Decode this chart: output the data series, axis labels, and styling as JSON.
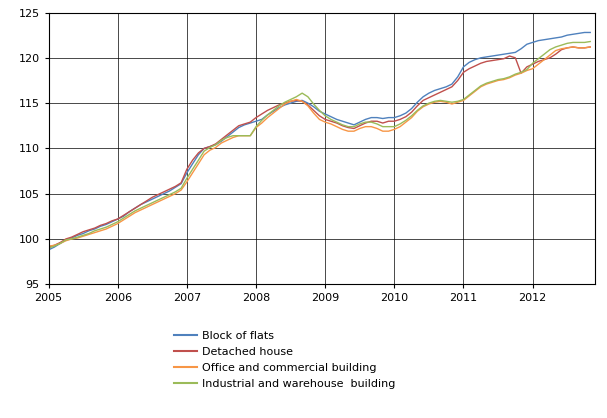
{
  "title": "",
  "xlim": [
    2005.0,
    2012.9
  ],
  "ylim": [
    95,
    125
  ],
  "yticks": [
    95,
    100,
    105,
    110,
    115,
    120,
    125
  ],
  "xtick_years": [
    2005,
    2006,
    2007,
    2008,
    2009,
    2010,
    2011,
    2012
  ],
  "grid_color": "#000000",
  "background_color": "#ffffff",
  "legend": [
    {
      "label": "Block of flats",
      "color": "#4f81bd"
    },
    {
      "label": "Detached house",
      "color": "#c0504d"
    },
    {
      "label": "Office and commercial building",
      "color": "#f79646"
    },
    {
      "label": "Industrial and warehouse  building",
      "color": "#9bbb59"
    }
  ],
  "series": {
    "block_of_flats": {
      "color": "#4f81bd",
      "x": [
        2005.0,
        2005.083,
        2005.167,
        2005.25,
        2005.333,
        2005.417,
        2005.5,
        2005.583,
        2005.667,
        2005.75,
        2005.833,
        2005.917,
        2006.0,
        2006.083,
        2006.167,
        2006.25,
        2006.333,
        2006.417,
        2006.5,
        2006.583,
        2006.667,
        2006.75,
        2006.833,
        2006.917,
        2007.0,
        2007.083,
        2007.167,
        2007.25,
        2007.333,
        2007.417,
        2007.5,
        2007.583,
        2007.667,
        2007.75,
        2007.833,
        2007.917,
        2008.0,
        2008.083,
        2008.167,
        2008.25,
        2008.333,
        2008.417,
        2008.5,
        2008.583,
        2008.667,
        2008.75,
        2008.833,
        2008.917,
        2009.0,
        2009.083,
        2009.167,
        2009.25,
        2009.333,
        2009.417,
        2009.5,
        2009.583,
        2009.667,
        2009.75,
        2009.833,
        2009.917,
        2010.0,
        2010.083,
        2010.167,
        2010.25,
        2010.333,
        2010.417,
        2010.5,
        2010.583,
        2010.667,
        2010.75,
        2010.833,
        2010.917,
        2011.0,
        2011.083,
        2011.167,
        2011.25,
        2011.333,
        2011.417,
        2011.5,
        2011.583,
        2011.667,
        2011.75,
        2011.833,
        2011.917,
        2012.0,
        2012.083,
        2012.167,
        2012.25,
        2012.333,
        2012.417,
        2012.5,
        2012.583,
        2012.667,
        2012.75,
        2012.833
      ],
      "y": [
        98.8,
        99.1,
        99.5,
        99.9,
        100.1,
        100.4,
        100.6,
        100.9,
        101.1,
        101.4,
        101.6,
        101.9,
        102.2,
        102.5,
        103.0,
        103.4,
        103.8,
        104.1,
        104.4,
        104.7,
        105.0,
        105.3,
        105.7,
        106.1,
        107.3,
        108.3,
        109.3,
        110.0,
        110.2,
        110.4,
        110.8,
        111.3,
        111.8,
        112.3,
        112.6,
        112.8,
        113.0,
        113.2,
        113.7,
        114.1,
        114.5,
        114.8,
        115.0,
        115.2,
        115.3,
        115.0,
        114.6,
        114.1,
        113.8,
        113.5,
        113.2,
        113.0,
        112.8,
        112.6,
        112.9,
        113.2,
        113.4,
        113.4,
        113.3,
        113.4,
        113.4,
        113.6,
        113.9,
        114.4,
        115.1,
        115.7,
        116.1,
        116.4,
        116.6,
        116.8,
        117.1,
        117.9,
        119.0,
        119.5,
        119.8,
        120.0,
        120.1,
        120.2,
        120.3,
        120.4,
        120.5,
        120.6,
        121.0,
        121.5,
        121.7,
        121.9,
        122.0,
        122.1,
        122.2,
        122.3,
        122.5,
        122.6,
        122.7,
        122.8,
        122.8
      ]
    },
    "detached_house": {
      "color": "#c0504d",
      "x": [
        2005.0,
        2005.083,
        2005.167,
        2005.25,
        2005.333,
        2005.417,
        2005.5,
        2005.583,
        2005.667,
        2005.75,
        2005.833,
        2005.917,
        2006.0,
        2006.083,
        2006.167,
        2006.25,
        2006.333,
        2006.417,
        2006.5,
        2006.583,
        2006.667,
        2006.75,
        2006.833,
        2006.917,
        2007.0,
        2007.083,
        2007.167,
        2007.25,
        2007.333,
        2007.417,
        2007.5,
        2007.583,
        2007.667,
        2007.75,
        2007.833,
        2007.917,
        2008.0,
        2008.083,
        2008.167,
        2008.25,
        2008.333,
        2008.417,
        2008.5,
        2008.583,
        2008.667,
        2008.75,
        2008.833,
        2008.917,
        2009.0,
        2009.083,
        2009.167,
        2009.25,
        2009.333,
        2009.417,
        2009.5,
        2009.583,
        2009.667,
        2009.75,
        2009.833,
        2009.917,
        2010.0,
        2010.083,
        2010.167,
        2010.25,
        2010.333,
        2010.417,
        2010.5,
        2010.583,
        2010.667,
        2010.75,
        2010.833,
        2010.917,
        2011.0,
        2011.083,
        2011.167,
        2011.25,
        2011.333,
        2011.417,
        2011.5,
        2011.583,
        2011.667,
        2011.75,
        2011.833,
        2011.917,
        2012.0,
        2012.083,
        2012.167,
        2012.25,
        2012.333,
        2012.417,
        2012.5,
        2012.583,
        2012.667,
        2012.75,
        2012.833
      ],
      "y": [
        99.1,
        99.3,
        99.6,
        100.0,
        100.2,
        100.5,
        100.8,
        101.0,
        101.2,
        101.5,
        101.7,
        102.0,
        102.2,
        102.6,
        103.0,
        103.4,
        103.8,
        104.2,
        104.6,
        104.9,
        105.2,
        105.5,
        105.8,
        106.2,
        107.7,
        108.7,
        109.5,
        110.0,
        110.2,
        110.5,
        111.0,
        111.5,
        112.0,
        112.5,
        112.7,
        112.9,
        113.4,
        113.8,
        114.2,
        114.5,
        114.8,
        115.0,
        115.2,
        115.3,
        115.2,
        114.8,
        114.2,
        113.6,
        113.2,
        113.0,
        112.8,
        112.5,
        112.3,
        112.2,
        112.5,
        112.8,
        113.0,
        113.0,
        112.8,
        113.0,
        113.0,
        113.2,
        113.5,
        114.0,
        114.7,
        115.3,
        115.6,
        115.9,
        116.2,
        116.5,
        116.8,
        117.5,
        118.4,
        118.8,
        119.1,
        119.4,
        119.6,
        119.7,
        119.8,
        119.9,
        120.2,
        120.0,
        118.3,
        119.0,
        119.3,
        119.6,
        119.8,
        120.0,
        120.4,
        120.9,
        121.1,
        121.2,
        121.1,
        121.1,
        121.2
      ]
    },
    "office_commercial": {
      "color": "#f79646",
      "x": [
        2005.0,
        2005.083,
        2005.167,
        2005.25,
        2005.333,
        2005.417,
        2005.5,
        2005.583,
        2005.667,
        2005.75,
        2005.833,
        2005.917,
        2006.0,
        2006.083,
        2006.167,
        2006.25,
        2006.333,
        2006.417,
        2006.5,
        2006.583,
        2006.667,
        2006.75,
        2006.833,
        2006.917,
        2007.0,
        2007.083,
        2007.167,
        2007.25,
        2007.333,
        2007.417,
        2007.5,
        2007.583,
        2007.667,
        2007.75,
        2007.833,
        2007.917,
        2008.0,
        2008.083,
        2008.167,
        2008.25,
        2008.333,
        2008.417,
        2008.5,
        2008.583,
        2008.667,
        2008.75,
        2008.833,
        2008.917,
        2009.0,
        2009.083,
        2009.167,
        2009.25,
        2009.333,
        2009.417,
        2009.5,
        2009.583,
        2009.667,
        2009.75,
        2009.833,
        2009.917,
        2010.0,
        2010.083,
        2010.167,
        2010.25,
        2010.333,
        2010.417,
        2010.5,
        2010.583,
        2010.667,
        2010.75,
        2010.833,
        2010.917,
        2011.0,
        2011.083,
        2011.167,
        2011.25,
        2011.333,
        2011.417,
        2011.5,
        2011.583,
        2011.667,
        2011.75,
        2011.833,
        2011.917,
        2012.0,
        2012.083,
        2012.167,
        2012.25,
        2012.333,
        2012.417,
        2012.5,
        2012.583,
        2012.667,
        2012.75,
        2012.833
      ],
      "y": [
        99.2,
        99.3,
        99.5,
        99.8,
        100.0,
        100.1,
        100.3,
        100.5,
        100.7,
        100.9,
        101.1,
        101.4,
        101.7,
        102.1,
        102.5,
        102.9,
        103.2,
        103.5,
        103.8,
        104.1,
        104.4,
        104.7,
        105.0,
        105.4,
        106.3,
        107.3,
        108.3,
        109.3,
        109.8,
        110.1,
        110.6,
        110.9,
        111.2,
        111.4,
        111.4,
        111.4,
        112.3,
        112.8,
        113.4,
        113.9,
        114.4,
        114.9,
        115.2,
        115.4,
        115.2,
        114.7,
        113.9,
        113.2,
        112.9,
        112.7,
        112.4,
        112.1,
        111.9,
        111.9,
        112.2,
        112.4,
        112.4,
        112.2,
        111.9,
        111.9,
        112.1,
        112.4,
        112.9,
        113.4,
        114.1,
        114.6,
        114.9,
        115.1,
        115.2,
        115.1,
        114.9,
        115.1,
        115.3,
        115.8,
        116.3,
        116.8,
        117.1,
        117.3,
        117.5,
        117.6,
        117.8,
        118.1,
        118.3,
        118.6,
        118.8,
        119.3,
        119.8,
        120.3,
        120.8,
        121.0,
        121.1,
        121.2,
        121.1,
        121.1,
        121.2
      ]
    },
    "industrial_warehouse": {
      "color": "#9bbb59",
      "x": [
        2005.0,
        2005.083,
        2005.167,
        2005.25,
        2005.333,
        2005.417,
        2005.5,
        2005.583,
        2005.667,
        2005.75,
        2005.833,
        2005.917,
        2006.0,
        2006.083,
        2006.167,
        2006.25,
        2006.333,
        2006.417,
        2006.5,
        2006.583,
        2006.667,
        2006.75,
        2006.833,
        2006.917,
        2007.0,
        2007.083,
        2007.167,
        2007.25,
        2007.333,
        2007.417,
        2007.5,
        2007.583,
        2007.667,
        2007.75,
        2007.833,
        2007.917,
        2008.0,
        2008.083,
        2008.167,
        2008.25,
        2008.333,
        2008.417,
        2008.5,
        2008.583,
        2008.667,
        2008.75,
        2008.833,
        2008.917,
        2009.0,
        2009.083,
        2009.167,
        2009.25,
        2009.333,
        2009.417,
        2009.5,
        2009.583,
        2009.667,
        2009.75,
        2009.833,
        2009.917,
        2010.0,
        2010.083,
        2010.167,
        2010.25,
        2010.333,
        2010.417,
        2010.5,
        2010.583,
        2010.667,
        2010.75,
        2010.833,
        2010.917,
        2011.0,
        2011.083,
        2011.167,
        2011.25,
        2011.333,
        2011.417,
        2011.5,
        2011.583,
        2011.667,
        2011.75,
        2011.833,
        2011.917,
        2012.0,
        2012.083,
        2012.167,
        2012.25,
        2012.333,
        2012.417,
        2012.5,
        2012.583,
        2012.667,
        2012.75,
        2012.833
      ],
      "y": [
        99.0,
        99.2,
        99.5,
        99.9,
        100.0,
        100.2,
        100.4,
        100.6,
        100.9,
        101.1,
        101.3,
        101.6,
        101.9,
        102.3,
        102.7,
        103.1,
        103.4,
        103.7,
        104.0,
        104.3,
        104.6,
        104.9,
        105.2,
        105.6,
        106.7,
        107.7,
        108.7,
        109.7,
        110.1,
        110.4,
        110.9,
        111.2,
        111.4,
        111.4,
        111.4,
        111.4,
        112.4,
        113.1,
        113.7,
        114.2,
        114.7,
        115.1,
        115.4,
        115.7,
        116.1,
        115.7,
        114.9,
        114.2,
        113.6,
        113.2,
        112.9,
        112.6,
        112.4,
        112.4,
        112.7,
        112.9,
        112.9,
        112.7,
        112.4,
        112.4,
        112.4,
        112.7,
        113.1,
        113.6,
        114.2,
        114.7,
        115.0,
        115.2,
        115.3,
        115.2,
        115.1,
        115.2,
        115.4,
        115.9,
        116.4,
        116.9,
        117.2,
        117.4,
        117.6,
        117.7,
        117.9,
        118.2,
        118.4,
        118.7,
        119.4,
        119.9,
        120.4,
        120.9,
        121.2,
        121.4,
        121.6,
        121.7,
        121.7,
        121.7,
        121.8
      ]
    }
  }
}
